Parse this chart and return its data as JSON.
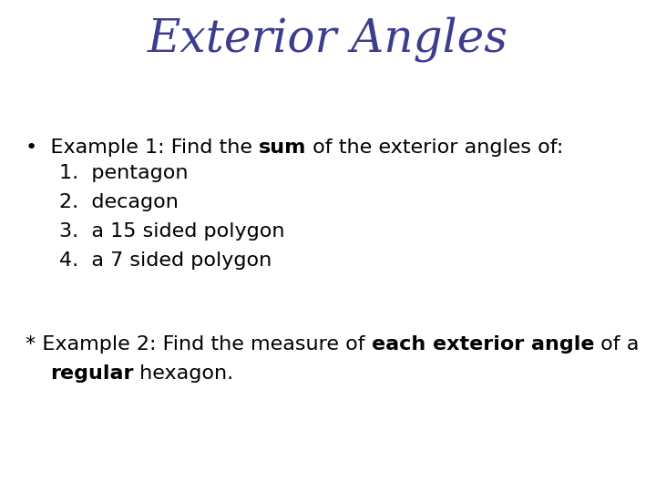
{
  "title": "Exterior Angles",
  "title_color": "#3d3d8f",
  "title_fontsize": 36,
  "title_font_style": "italic",
  "title_font_family": "serif",
  "bg_color": "#ffffff",
  "text_color": "#000000",
  "body_fontsize": 16,
  "body_font_family": "DejaVu Sans",
  "fig_width": 7.2,
  "fig_height": 5.4,
  "fig_dpi": 100
}
